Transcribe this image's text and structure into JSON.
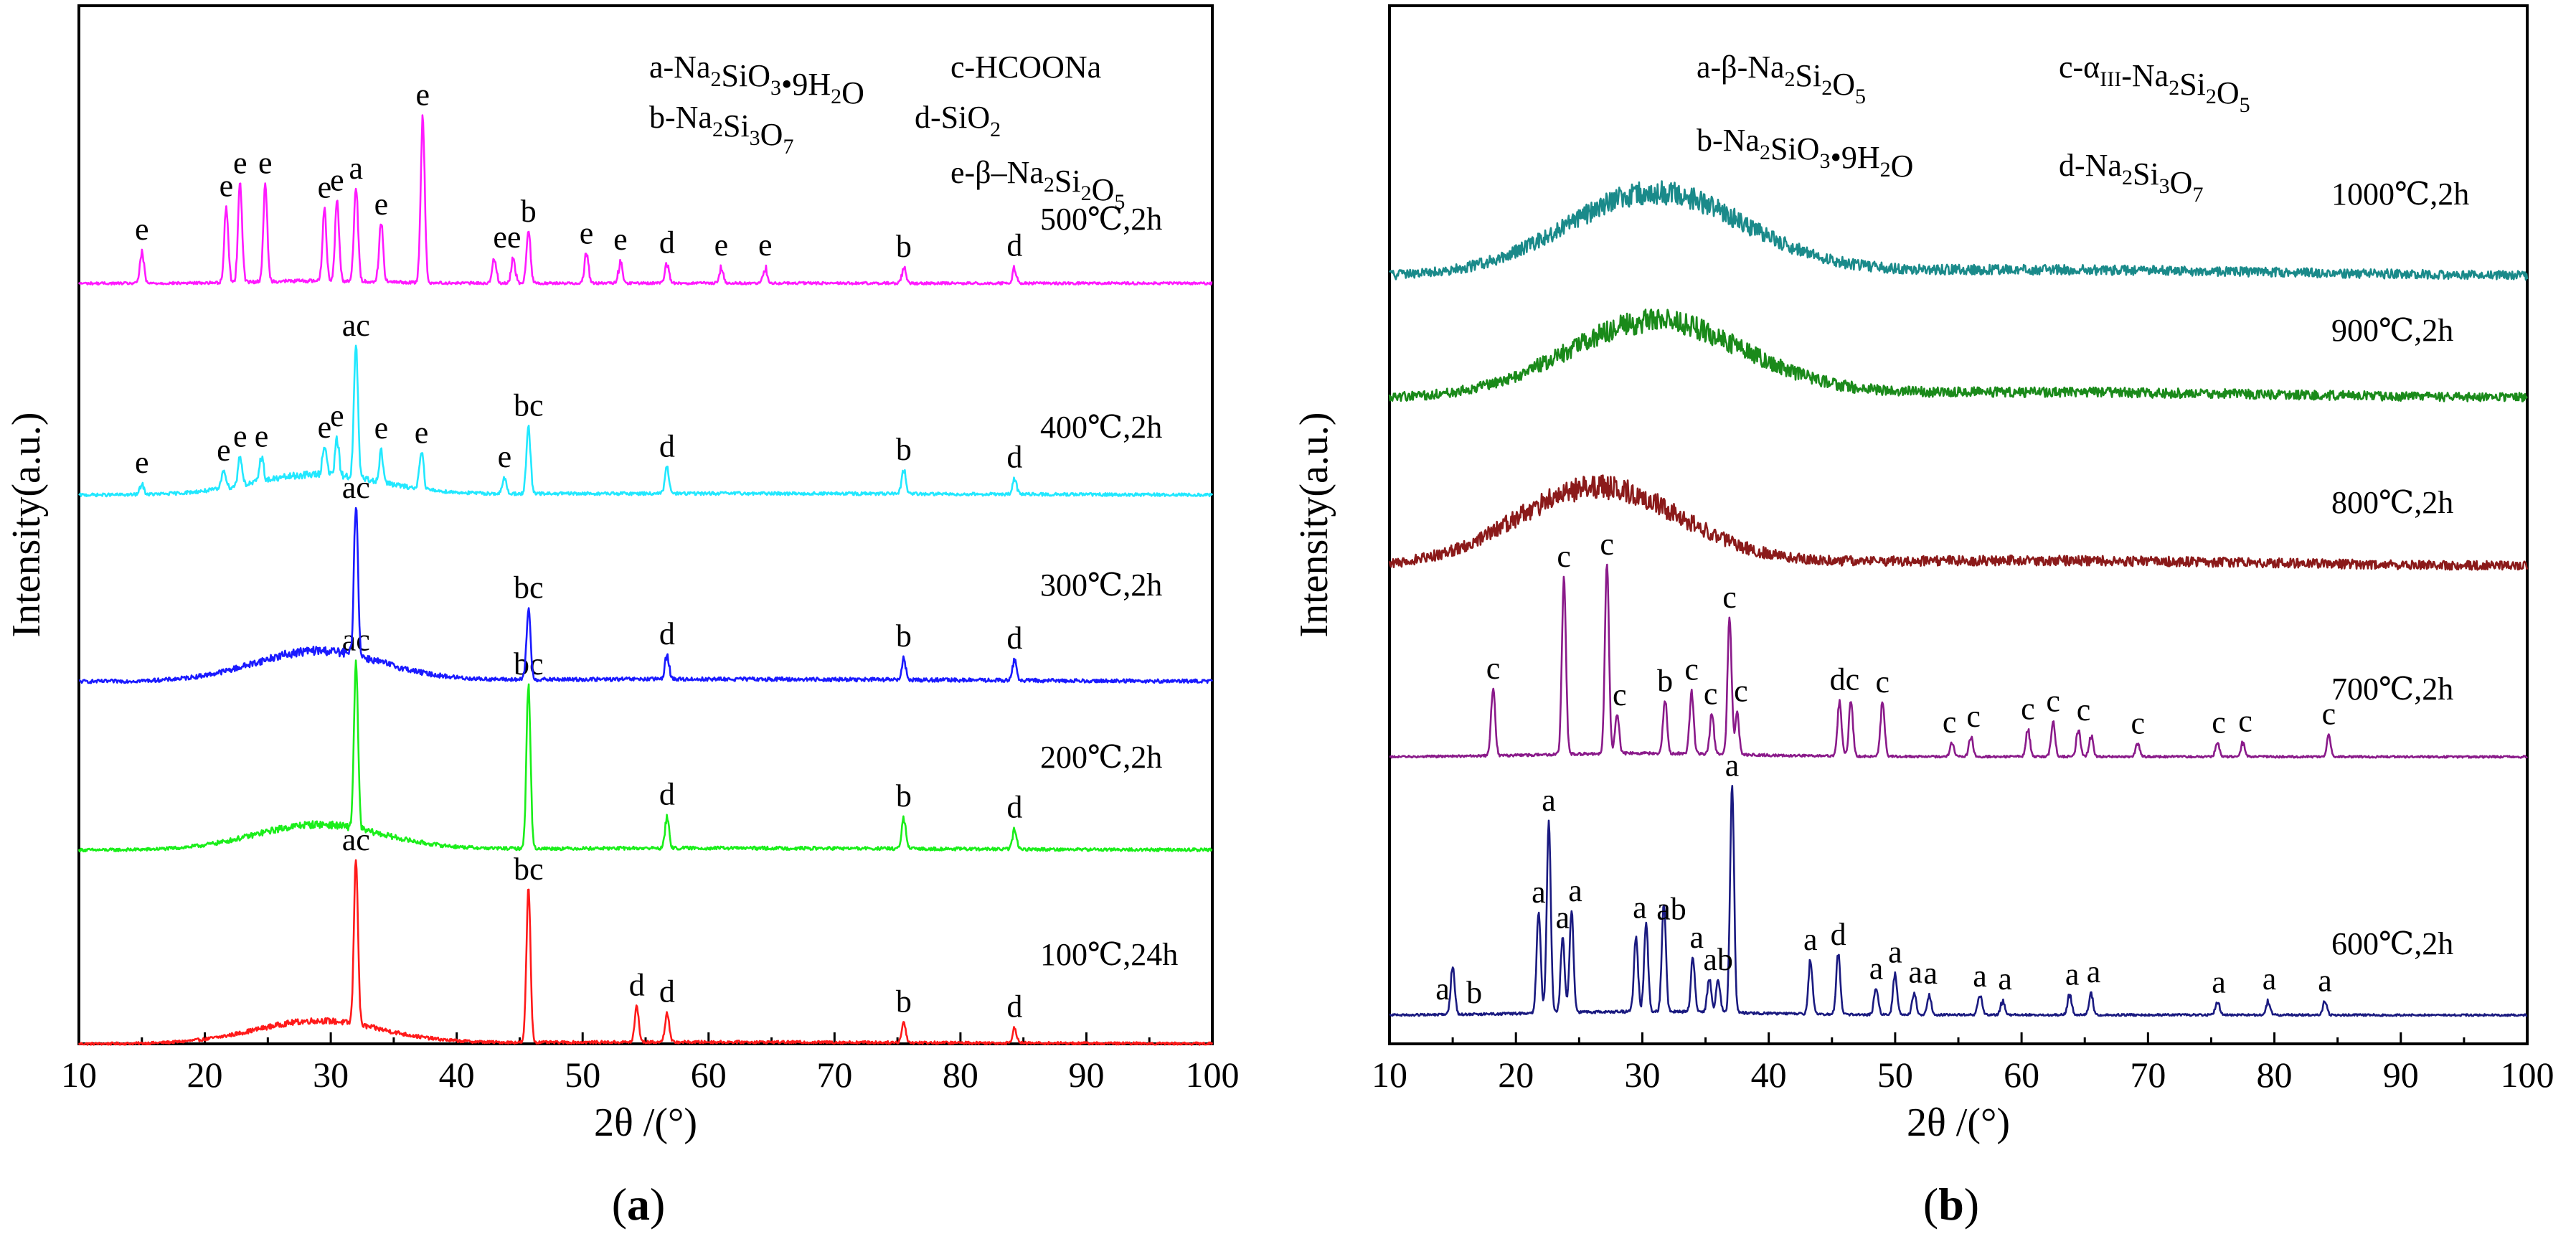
{
  "chart_data": [
    {
      "type": "line",
      "panel": "(a)",
      "caption_label": "a",
      "xlabel": "2θ /(°)",
      "ylabel": "Intensity(a.u.)",
      "xlim": [
        10,
        100
      ],
      "xticks": [
        "10",
        "20",
        "30",
        "40",
        "50",
        "60",
        "70",
        "80",
        "90",
        "100"
      ],
      "legend": [
        {
          "key": "a",
          "sub": [
            [
              "a-Na",
              ""
            ],
            [
              "2",
              "sub"
            ],
            [
              "SiO",
              ""
            ],
            [
              "3",
              "sub"
            ],
            [
              "•9H",
              ""
            ],
            [
              "2",
              "sub"
            ],
            [
              "O",
              ""
            ]
          ]
        },
        {
          "key": "c",
          "sub": [
            [
              "c-HCOONa",
              ""
            ]
          ]
        },
        {
          "key": "b",
          "sub": [
            [
              "b-Na",
              ""
            ],
            [
              "2",
              "sub"
            ],
            [
              "Si",
              ""
            ],
            [
              "3",
              "sub"
            ],
            [
              "O",
              ""
            ],
            [
              "7",
              "sub"
            ]
          ]
        },
        {
          "key": "d",
          "sub": [
            [
              "d-SiO",
              ""
            ],
            [
              "2",
              "sub"
            ]
          ]
        },
        {
          "key": "e",
          "sub": [
            [
              "e-β–Na",
              ""
            ],
            [
              "2",
              "sub"
            ],
            [
              "Si",
              ""
            ],
            [
              "2",
              "sub"
            ],
            [
              "O",
              ""
            ],
            [
              "5",
              "sub"
            ]
          ]
        }
      ],
      "series": [
        {
          "name": "100℃,24h",
          "color": "#ff1a1a",
          "hump_center": 29,
          "hump_height": 0.45,
          "hump_width": 5,
          "noise": 0.05,
          "peaks": [
            [
              32,
              3.3
            ],
            [
              45.7,
              3.1
            ],
            [
              54.3,
              0.7
            ],
            [
              56.7,
              0.6
            ],
            [
              75.5,
              0.4
            ],
            [
              84.3,
              0.3
            ]
          ],
          "labels": [
            [
              "ac",
              32
            ],
            [
              "bc",
              45.7
            ],
            [
              "d",
              54.3
            ],
            [
              "d",
              56.7
            ],
            [
              "b",
              75.5
            ],
            [
              "d",
              84.3
            ]
          ]
        },
        {
          "name": "200℃,2h",
          "color": "#1aee1a",
          "hump_center": 29,
          "hump_height": 0.5,
          "hump_width": 5,
          "noise": 0.06,
          "peaks": [
            [
              32,
              3.3
            ],
            [
              45.7,
              3.3
            ],
            [
              56.7,
              0.6
            ],
            [
              75.5,
              0.6
            ],
            [
              84.3,
              0.4
            ]
          ],
          "labels": [
            [
              "ac",
              32
            ],
            [
              "bc",
              45.7
            ],
            [
              "d",
              56.7
            ],
            [
              "b",
              75.5
            ],
            [
              "d",
              84.3
            ]
          ]
        },
        {
          "name": "300℃,2h",
          "color": "#1a1aff",
          "hump_center": 29,
          "hump_height": 0.6,
          "hump_width": 5,
          "noise": 0.07,
          "peaks": [
            [
              32,
              3.0
            ],
            [
              45.7,
              1.4
            ],
            [
              56.7,
              0.5
            ],
            [
              75.5,
              0.4
            ],
            [
              84.3,
              0.4
            ]
          ],
          "labels": [
            [
              "ac",
              32
            ],
            [
              "bc",
              45.7
            ],
            [
              "d",
              56.7
            ],
            [
              "b",
              75.5
            ],
            [
              "d",
              84.3
            ]
          ]
        },
        {
          "name": "400℃,2h",
          "color": "#22e8ff",
          "hump_center": 29,
          "hump_height": 0.4,
          "hump_width": 5,
          "noise": 0.06,
          "peaks": [
            [
              15,
              0.2
            ],
            [
              21.5,
              0.4
            ],
            [
              22.8,
              0.6
            ],
            [
              24.5,
              0.5
            ],
            [
              29.5,
              0.6
            ],
            [
              30.5,
              0.7
            ],
            [
              32,
              2.6
            ],
            [
              34,
              0.6
            ],
            [
              37.2,
              0.8
            ],
            [
              43.8,
              0.3
            ],
            [
              45.7,
              1.3
            ],
            [
              56.7,
              0.5
            ],
            [
              75.5,
              0.5
            ],
            [
              84.3,
              0.3
            ]
          ],
          "labels": [
            [
              "e",
              15
            ],
            [
              "e",
              21.5
            ],
            [
              "e",
              22.8
            ],
            [
              "e",
              24.5
            ],
            [
              "e",
              29.5
            ],
            [
              "e",
              30.5
            ],
            [
              "ac",
              32
            ],
            [
              "e",
              34
            ],
            [
              "e",
              37.2
            ],
            [
              "e",
              43.8
            ],
            [
              "bc",
              45.7
            ],
            [
              "d",
              56.7
            ],
            [
              "b",
              75.5
            ],
            [
              "d",
              84.3
            ]
          ]
        },
        {
          "name": "500℃,2h",
          "color": "#ff1aff",
          "hump_center": 29,
          "hump_height": 0.05,
          "hump_width": 5,
          "noise": 0.05,
          "peaks": [
            [
              15,
              0.6
            ],
            [
              21.7,
              1.5
            ],
            [
              22.8,
              2.0
            ],
            [
              24.8,
              1.9
            ],
            [
              29.5,
              1.4
            ],
            [
              30.5,
              1.6
            ],
            [
              32,
              1.9
            ],
            [
              34,
              1.2
            ],
            [
              37.3,
              3.3
            ],
            [
              43,
              0.5
            ],
            [
              44.5,
              0.5
            ],
            [
              45.7,
              1.1
            ],
            [
              50.3,
              0.6
            ],
            [
              53,
              0.4
            ],
            [
              56.7,
              0.4
            ],
            [
              61,
              0.3
            ],
            [
              64.5,
              0.3
            ],
            [
              75.5,
              0.3
            ],
            [
              84.3,
              0.3
            ]
          ],
          "labels": [
            [
              "e",
              15
            ],
            [
              "e",
              21.7
            ],
            [
              "e",
              22.8
            ],
            [
              "e",
              24.8
            ],
            [
              "e",
              29.5
            ],
            [
              "e",
              30.5
            ],
            [
              "a",
              32
            ],
            [
              "e",
              34
            ],
            [
              "e",
              37.3
            ],
            [
              "ee",
              44
            ],
            [
              "b",
              45.7
            ],
            [
              "e",
              50.3
            ],
            [
              "e",
              53
            ],
            [
              "d",
              56.7
            ],
            [
              "e",
              61
            ],
            [
              "e",
              64.5
            ],
            [
              "b",
              75.5
            ],
            [
              "d",
              84.3
            ]
          ]
        }
      ]
    },
    {
      "type": "line",
      "panel": "(b)",
      "caption_label": "b",
      "xlabel": "2θ /(°)",
      "ylabel": "Intensity(a.u.)",
      "xlim": [
        10,
        100
      ],
      "xticks": [
        "10",
        "20",
        "30",
        "40",
        "50",
        "60",
        "70",
        "80",
        "90",
        "100"
      ],
      "legend": [
        {
          "key": "a",
          "sub": [
            [
              "a-β-Na",
              ""
            ],
            [
              "2",
              "sub"
            ],
            [
              "Si",
              ""
            ],
            [
              "2",
              "sub"
            ],
            [
              "O",
              ""
            ],
            [
              "5",
              "sub"
            ]
          ]
        },
        {
          "key": "c",
          "sub": [
            [
              "c-α",
              ""
            ],
            [
              "III",
              "sub"
            ],
            [
              "-Na",
              ""
            ],
            [
              "2",
              "sub"
            ],
            [
              "Si",
              ""
            ],
            [
              "2",
              "sub"
            ],
            [
              "O",
              ""
            ],
            [
              "5",
              "sub"
            ]
          ]
        },
        {
          "key": "b",
          "sub": [
            [
              "b-Na",
              ""
            ],
            [
              "2",
              "sub"
            ],
            [
              "SiO",
              ""
            ],
            [
              "3",
              "sub"
            ],
            [
              "•9H",
              ""
            ],
            [
              "2",
              "sub"
            ],
            [
              "O",
              ""
            ]
          ]
        },
        {
          "key": "d",
          "sub": [
            [
              "d-Na",
              ""
            ],
            [
              "2",
              "sub"
            ],
            [
              "Si",
              ""
            ],
            [
              "3",
              "sub"
            ],
            [
              "O",
              ""
            ],
            [
              "7",
              "sub"
            ]
          ]
        }
      ],
      "series": [
        {
          "name": "600℃,2h",
          "color": "#1a1a80",
          "hump_center": 30,
          "hump_height": 0.05,
          "hump_width": 8,
          "noise": 0.03,
          "peaks": [
            [
              15,
              0.7
            ],
            [
              21.8,
              1.5
            ],
            [
              22.6,
              2.8
            ],
            [
              23.7,
              1.1
            ],
            [
              24.4,
              1.5
            ],
            [
              29.5,
              1.1
            ],
            [
              30.3,
              1.3
            ],
            [
              31.7,
              1.6
            ],
            [
              34,
              0.8
            ],
            [
              35.3,
              0.5
            ],
            [
              36,
              0.5
            ],
            [
              37.1,
              3.3
            ],
            [
              43.3,
              0.8
            ],
            [
              45.5,
              0.9
            ],
            [
              48.5,
              0.4
            ],
            [
              50,
              0.6
            ],
            [
              51.5,
              0.3
            ],
            [
              52.7,
              0.3
            ],
            [
              56.7,
              0.3
            ],
            [
              58.5,
              0.2
            ],
            [
              63.8,
              0.3
            ],
            [
              65.5,
              0.3
            ],
            [
              75.5,
              0.2
            ],
            [
              79.5,
              0.2
            ],
            [
              84,
              0.2
            ]
          ],
          "labels": [
            [
              "a",
              14.2
            ],
            [
              "b",
              16.7
            ],
            [
              "a",
              22.6
            ],
            [
              "a",
              21.8
            ],
            [
              "a",
              23.7
            ],
            [
              "a",
              24.7
            ],
            [
              "a",
              29.8
            ],
            [
              "ab",
              32.3
            ],
            [
              "a",
              34.3
            ],
            [
              "ab",
              36
            ],
            [
              "a",
              37.1
            ],
            [
              "a",
              43.3
            ],
            [
              "d",
              45.5
            ],
            [
              "a",
              48.5
            ],
            [
              "a",
              50
            ],
            [
              "a",
              51.6
            ],
            [
              "a",
              52.8
            ],
            [
              "a",
              56.7
            ],
            [
              "a",
              58.7
            ],
            [
              "a",
              64
            ],
            [
              "a",
              65.7
            ],
            [
              "a",
              75.6
            ],
            [
              "a",
              79.6
            ],
            [
              "a",
              84
            ]
          ]
        },
        {
          "name": "700℃,2h",
          "color": "#8a1a8a",
          "hump_center": 30,
          "hump_height": 0.05,
          "hump_width": 8,
          "noise": 0.03,
          "peaks": [
            [
              18.2,
              1.0
            ],
            [
              23.8,
              2.6
            ],
            [
              27.2,
              2.8
            ],
            [
              28,
              0.6
            ],
            [
              31.8,
              0.8
            ],
            [
              33.9,
              0.9
            ],
            [
              35.5,
              0.6
            ],
            [
              36.9,
              2.0
            ],
            [
              37.5,
              0.6
            ],
            [
              45.6,
              0.8
            ],
            [
              46.5,
              0.8
            ],
            [
              49,
              0.8
            ],
            [
              54.5,
              0.2
            ],
            [
              56,
              0.3
            ],
            [
              60.5,
              0.4
            ],
            [
              62.5,
              0.5
            ],
            [
              64.5,
              0.4
            ],
            [
              65.5,
              0.3
            ],
            [
              69.2,
              0.2
            ],
            [
              75.5,
              0.2
            ],
            [
              77.5,
              0.2
            ],
            [
              84.3,
              0.3
            ]
          ],
          "labels": [
            [
              "c",
              18.2
            ],
            [
              "c",
              23.8
            ],
            [
              "c",
              27.2
            ],
            [
              "c",
              28.2
            ],
            [
              "b",
              31.8
            ],
            [
              "c",
              33.9
            ],
            [
              "c",
              35.4
            ],
            [
              "c",
              36.9
            ],
            [
              "c",
              37.8
            ],
            [
              "dc",
              46
            ],
            [
              "c",
              49
            ],
            [
              "c",
              54.3
            ],
            [
              "c",
              56.2
            ],
            [
              "c",
              60.5
            ],
            [
              "c",
              62.5
            ],
            [
              "c",
              64.9
            ],
            [
              "c",
              69.2
            ],
            [
              "c",
              75.6
            ],
            [
              "c",
              77.7
            ],
            [
              "c",
              84.3
            ]
          ]
        },
        {
          "name": "800℃,2h",
          "color": "#8b1a1a",
          "hump_center": 26.5,
          "hump_height": 1.15,
          "hump_width": 6.5,
          "noise": 0.13,
          "peaks": [],
          "labels": []
        },
        {
          "name": "900℃,2h",
          "color": "#1a8a1a",
          "hump_center": 31,
          "hump_height": 1.1,
          "hump_width": 7,
          "noise": 0.13,
          "peaks": [],
          "labels": []
        },
        {
          "name": "1000℃,2h",
          "color": "#1a8a8a",
          "hump_center": 31,
          "hump_height": 1.2,
          "hump_width": 7,
          "noise": 0.13,
          "peaks": [],
          "labels": []
        }
      ]
    }
  ]
}
